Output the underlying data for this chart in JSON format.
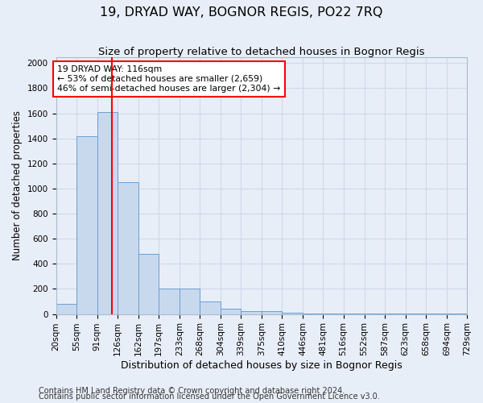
{
  "title": "19, DRYAD WAY, BOGNOR REGIS, PO22 7RQ",
  "subtitle": "Size of property relative to detached houses in Bognor Regis",
  "xlabel": "Distribution of detached houses by size in Bognor Regis",
  "ylabel": "Number of detached properties",
  "footer_line1": "Contains HM Land Registry data © Crown copyright and database right 2024.",
  "footer_line2": "Contains public sector information licensed under the Open Government Licence v3.0.",
  "bin_edges": [
    20,
    55,
    91,
    126,
    162,
    197,
    233,
    268,
    304,
    339,
    375,
    410,
    446,
    481,
    516,
    552,
    587,
    623,
    658,
    694,
    729
  ],
  "bar_heights": [
    80,
    1415,
    1610,
    1050,
    480,
    205,
    205,
    100,
    45,
    25,
    20,
    10,
    5,
    3,
    2,
    1,
    1,
    1,
    1,
    1
  ],
  "bar_color": "#c8d9ee",
  "bar_edge_color": "#6a9fd0",
  "vline_x": 116,
  "vline_color": "red",
  "annotation_text": "19 DRYAD WAY: 116sqm\n← 53% of detached houses are smaller (2,659)\n46% of semi-detached houses are larger (2,304) →",
  "annotation_box_color": "white",
  "annotation_box_edge": "red",
  "ylim": [
    0,
    2050
  ],
  "yticks": [
    0,
    200,
    400,
    600,
    800,
    1000,
    1200,
    1400,
    1600,
    1800,
    2000
  ],
  "bg_color": "#e8eef8",
  "grid_color": "#d0d8e8",
  "title_fontsize": 11.5,
  "subtitle_fontsize": 9.5,
  "xlabel_fontsize": 9,
  "ylabel_fontsize": 8.5,
  "tick_fontsize": 7.5,
  "annotation_fontsize": 7.8,
  "footer_fontsize": 7
}
